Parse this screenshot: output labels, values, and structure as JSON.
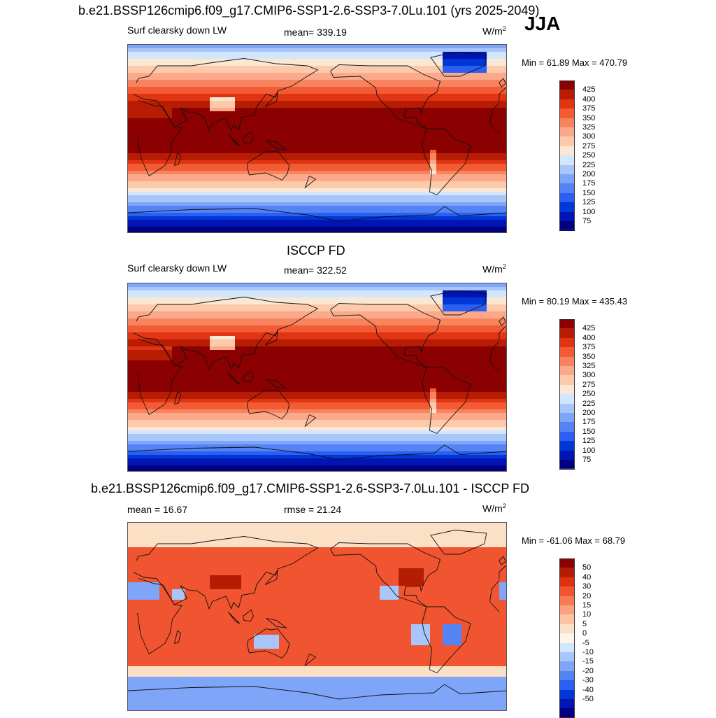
{
  "header": {
    "title": "b.e21.BSSP126cmip6.f09_g17.CMIP6-SSP1-2.6-SSP3-7.0Lu.101 (yrs 2025-2049)",
    "season": "JJA"
  },
  "colors": {
    "abs": [
      "#000080",
      "#0015b4",
      "#0037d7",
      "#2b5ef3",
      "#5483f5",
      "#7ea5f7",
      "#a9c6fa",
      "#d2e6fd",
      "#fbe8d4",
      "#fcc9ab",
      "#fba98a",
      "#f8845f",
      "#f25b33",
      "#e13413",
      "#b81d04",
      "#8b0000"
    ],
    "diff": [
      "#000080",
      "#0015b4",
      "#0037d7",
      "#2b5ef3",
      "#5483f5",
      "#7ea5f7",
      "#a9c6fa",
      "#d2e6fd",
      "#fdf5ea",
      "#fbe0c6",
      "#fcc4a2",
      "#fba17e",
      "#f77c55",
      "#f05430",
      "#e03113",
      "#b51c04",
      "#8b0000"
    ]
  },
  "panels": [
    {
      "id": "model",
      "subtitle": "",
      "left_label": "Surf clearsky down LW",
      "center_label": "mean= 339.19",
      "unit_base": "W/m",
      "unit_exp": "2",
      "minmax": "Min =  61.89 Max = 470.79",
      "levels": [
        "425",
        "400",
        "375",
        "350",
        "325",
        "300",
        "275",
        "250",
        "225",
        "200",
        "175",
        "150",
        "125",
        "100",
        "75"
      ]
    },
    {
      "id": "obs",
      "subtitle": "ISCCP FD",
      "left_label": "Surf clearsky down LW",
      "center_label": "mean= 322.52",
      "unit_base": "W/m",
      "unit_exp": "2",
      "minmax": "Min =  80.19 Max = 435.43",
      "levels": [
        "425",
        "400",
        "375",
        "350",
        "325",
        "300",
        "275",
        "250",
        "225",
        "200",
        "175",
        "150",
        "125",
        "100",
        "75"
      ]
    },
    {
      "id": "diff",
      "subtitle": "b.e21.BSSP126cmip6.f09_g17.CMIP6-SSP1-2.6-SSP3-7.0Lu.101 - ISCCP FD",
      "left_label": "mean =  16.67",
      "center_label": "rmse =  21.24",
      "unit_base": "W/m",
      "unit_exp": "2",
      "minmax": "Min = -61.06 Max =  68.79",
      "levels": [
        "50",
        "40",
        "30",
        "20",
        "15",
        "10",
        "5",
        "0",
        "-5",
        "-10",
        "-15",
        "-20",
        "-30",
        "-40",
        "-50"
      ]
    }
  ]
}
